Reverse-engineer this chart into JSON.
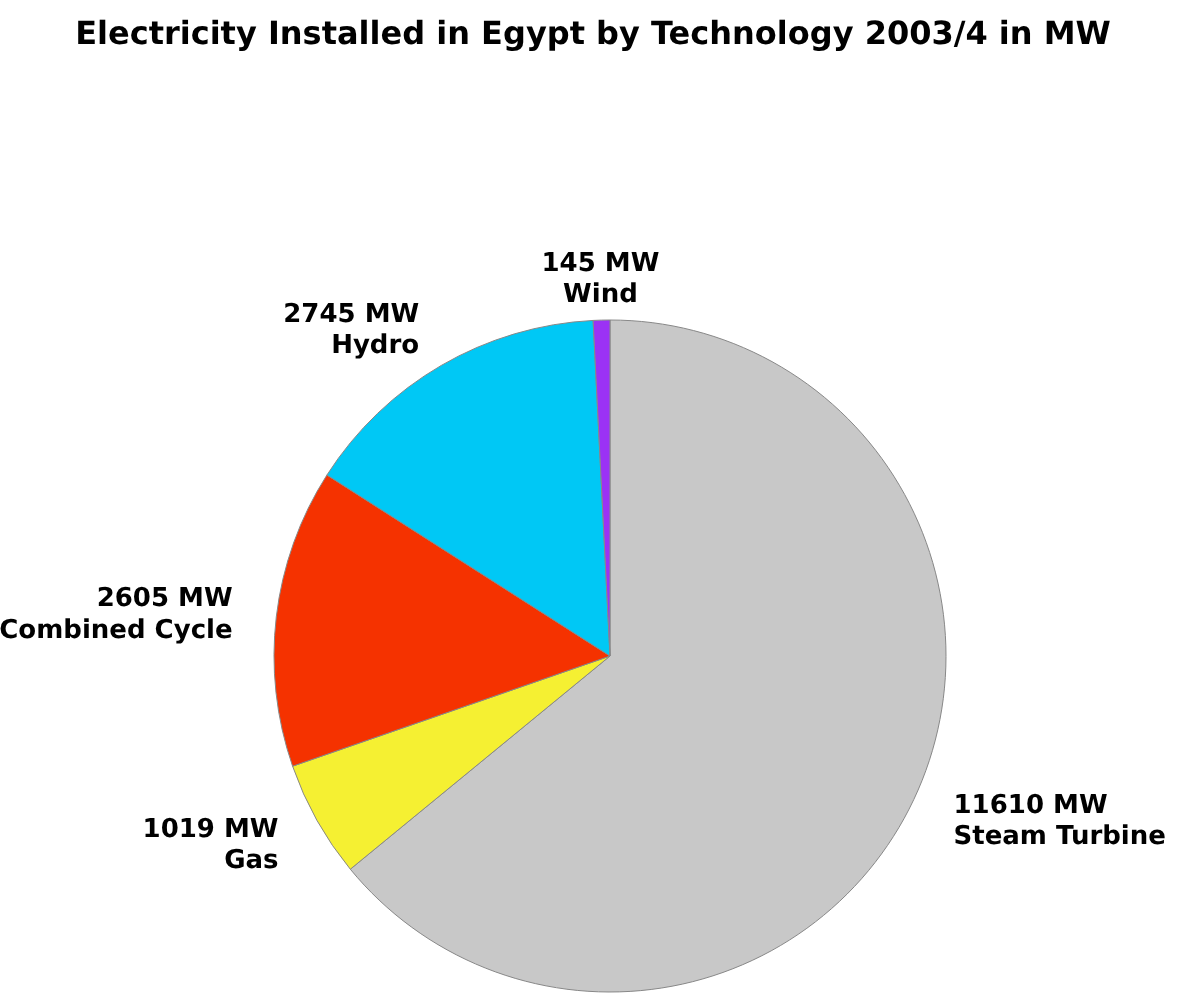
{
  "chart_data": {
    "type": "pie",
    "title": "Electricity Installed in Egypt by Technology 2003/4 in MW",
    "categories": [
      "Steam Turbine",
      "Gas",
      "Combined Cycle",
      "Hydro",
      "Wind"
    ],
    "values": [
      11610,
      1019,
      2605,
      2745,
      145
    ],
    "value_labels": [
      "11610 MW",
      "1019 MW",
      "2605 MW",
      "2745 MW",
      "145 MW"
    ],
    "colors": [
      "#c8c8c8",
      "#f5f032",
      "#f53200",
      "#00c8f5",
      "#9b32f5"
    ]
  }
}
